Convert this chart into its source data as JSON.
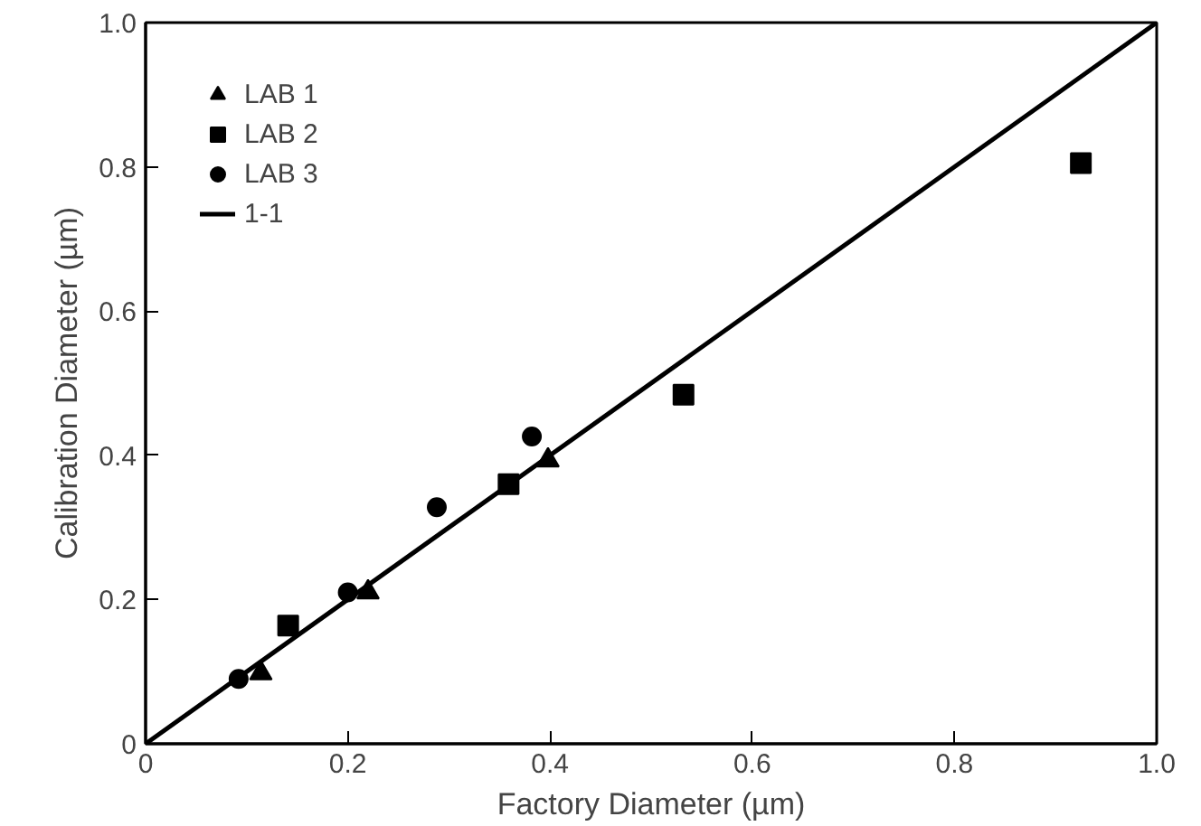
{
  "chart_data": {
    "type": "scatter",
    "xlabel": "Factory Diameter (µm)",
    "ylabel": "Calibration Diameter (µm)",
    "xlim": [
      0,
      1.0
    ],
    "ylim": [
      0,
      1.0
    ],
    "xticks": [
      0,
      0.2,
      0.4,
      0.6,
      0.8,
      {
        "value": 1.0,
        "label": "1.0"
      }
    ],
    "yticks": [
      0,
      0.2,
      0.4,
      0.6,
      0.8,
      {
        "value": 1.0,
        "label": "1.0"
      }
    ],
    "grid": false,
    "legend": "top left",
    "series": [
      {
        "name": "LAB 1",
        "color": "#000000",
        "marker": "triangle",
        "x": [
          0.114,
          0.22,
          0.398
        ],
        "values": [
          0.098,
          0.21,
          0.393
        ]
      },
      {
        "name": "LAB 2",
        "color": "#000000",
        "marker": "square",
        "x": [
          0.141,
          0.359,
          0.532,
          0.925
        ],
        "values": [
          0.164,
          0.36,
          0.484,
          0.805
        ]
      },
      {
        "name": "LAB 3",
        "color": "#000000",
        "marker": "circle",
        "x": [
          0.092,
          0.2,
          0.288,
          0.382
        ],
        "values": [
          0.09,
          0.21,
          0.328,
          0.426
        ]
      },
      {
        "name": "1-1",
        "color": "#000000",
        "type": "line",
        "marker": "none",
        "line_style": "solid",
        "x": [
          0,
          1.0
        ],
        "values": [
          0,
          1.0
        ]
      }
    ]
  }
}
